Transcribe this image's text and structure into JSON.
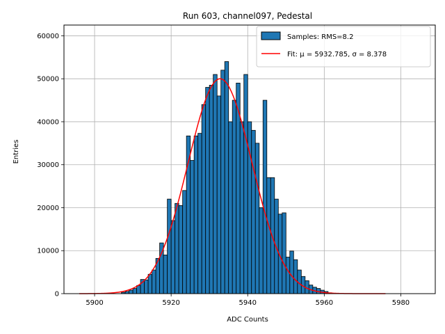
{
  "chart_data": {
    "type": "bar",
    "title": "Run 603, channel097, Pedestal",
    "xlabel": "ADC Counts",
    "ylabel": "Entries",
    "xlim": [
      5892,
      5989
    ],
    "ylim": [
      0,
      62500
    ],
    "xticks": [
      5900,
      5920,
      5940,
      5960,
      5980
    ],
    "yticks": [
      0,
      10000,
      20000,
      30000,
      40000,
      50000,
      60000
    ],
    "grid": true,
    "legend_position": "top-right",
    "legend": {
      "histogram_label": "Samples: RMS=8.2",
      "fit_label": "Fit: μ = 5932.785, σ = 8.378"
    },
    "histogram": {
      "name": "Samples: RMS=8.2",
      "color": "#1f77b4",
      "edge_color": "#000000",
      "bin_width": 1,
      "bin_starts": [
        5907,
        5908,
        5909,
        5910,
        5911,
        5912,
        5913,
        5914,
        5915,
        5916,
        5917,
        5918,
        5919,
        5920,
        5921,
        5922,
        5923,
        5924,
        5925,
        5926,
        5927,
        5928,
        5929,
        5930,
        5931,
        5932,
        5933,
        5934,
        5935,
        5936,
        5937,
        5938,
        5939,
        5940,
        5941,
        5942,
        5943,
        5944,
        5945,
        5946,
        5947,
        5948,
        5949,
        5950,
        5951,
        5952,
        5953,
        5954,
        5955,
        5956,
        5957,
        5958,
        5959,
        5960,
        5961
      ],
      "values": [
        300,
        500,
        800,
        1200,
        1900,
        3300,
        3200,
        4500,
        5500,
        8200,
        11800,
        9000,
        22000,
        17000,
        21000,
        20500,
        24000,
        36700,
        31000,
        36700,
        37300,
        44000,
        48000,
        48500,
        51000,
        46000,
        52000,
        54000,
        40000,
        45000,
        49000,
        40000,
        51000,
        40000,
        38000,
        35000,
        20000,
        45000,
        27000,
        27000,
        22000,
        18500,
        18800,
        8500,
        9900,
        7900,
        5500,
        4000,
        3000,
        2000,
        1500,
        1200,
        800,
        500,
        200
      ]
    },
    "fit": {
      "name": "Fit: μ = 5932.785, σ = 8.378",
      "color": "#ff0000",
      "mu": 5932.785,
      "sigma": 8.378,
      "amplitude": 50000,
      "x_range": [
        5896,
        5976
      ]
    }
  }
}
